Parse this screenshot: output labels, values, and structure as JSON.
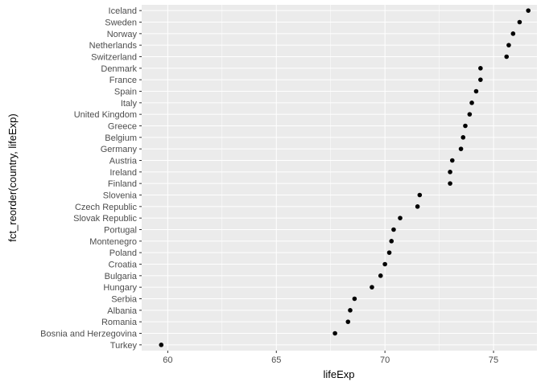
{
  "chart_data": {
    "type": "scatter",
    "xlabel": "lifeExp",
    "ylabel": "fct_reorder(country, lifeExp)",
    "xlim": [
      58.8,
      77.0
    ],
    "x_ticks": [
      60,
      65,
      70,
      75
    ],
    "grid": true,
    "colors": {
      "panel": "#ebebeb",
      "grid_major": "#ffffff",
      "point": "#000000"
    },
    "categories": [
      "Turkey",
      "Bosnia and Herzegovina",
      "Romania",
      "Albania",
      "Serbia",
      "Hungary",
      "Bulgaria",
      "Croatia",
      "Poland",
      "Montenegro",
      "Portugal",
      "Slovak Republic",
      "Czech Republic",
      "Slovenia",
      "Finland",
      "Ireland",
      "Austria",
      "Germany",
      "Belgium",
      "Greece",
      "United Kingdom",
      "Italy",
      "Spain",
      "France",
      "Denmark",
      "Switzerland",
      "Netherlands",
      "Norway",
      "Sweden",
      "Iceland"
    ],
    "values": [
      59.7,
      67.7,
      68.3,
      68.4,
      68.6,
      69.4,
      69.8,
      70.0,
      70.2,
      70.3,
      70.4,
      70.7,
      71.5,
      71.6,
      73.0,
      73.0,
      73.1,
      73.5,
      73.6,
      73.7,
      73.9,
      74.0,
      74.2,
      74.4,
      74.4,
      75.6,
      75.7,
      75.9,
      76.2,
      76.6
    ]
  }
}
